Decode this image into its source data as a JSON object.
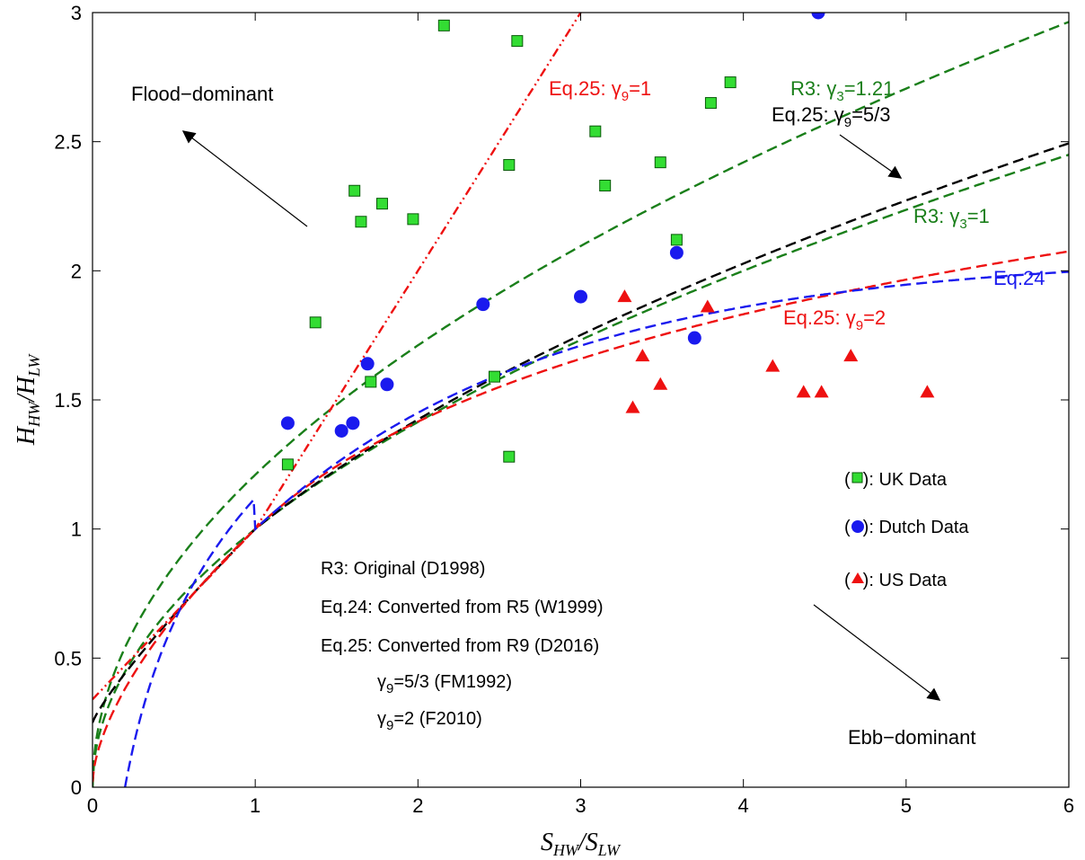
{
  "chart_data": {
    "type": "scatter",
    "xlabel": {
      "main": "S",
      "sub1": "HW",
      "sep": "/S",
      "sub2": "LW"
    },
    "ylabel": {
      "main": "H",
      "sub1": "HW",
      "sep": "/H",
      "sub2": "LW"
    },
    "xlim": [
      0,
      6
    ],
    "ylim": [
      0,
      3
    ],
    "xticks": [
      0,
      1,
      2,
      3,
      4,
      5,
      6
    ],
    "yticks": [
      0,
      0.5,
      1,
      1.5,
      2,
      2.5,
      3
    ],
    "ytick_labels": [
      "0",
      "0.5",
      "1",
      "1.5",
      "2",
      "2.5",
      "3"
    ],
    "grid": false,
    "series": [
      {
        "name": "UK Data",
        "marker": "square",
        "color": "#33dd33",
        "points": [
          [
            1.2,
            1.25
          ],
          [
            1.37,
            1.8
          ],
          [
            1.61,
            2.31
          ],
          [
            1.65,
            2.19
          ],
          [
            1.71,
            1.57
          ],
          [
            1.78,
            2.26
          ],
          [
            1.97,
            2.2
          ],
          [
            2.16,
            2.95
          ],
          [
            2.47,
            1.59
          ],
          [
            2.56,
            2.41
          ],
          [
            2.56,
            1.28
          ],
          [
            2.61,
            2.89
          ],
          [
            3.09,
            2.54
          ],
          [
            3.15,
            2.33
          ],
          [
            3.49,
            2.42
          ],
          [
            3.59,
            2.12
          ],
          [
            3.8,
            2.65
          ],
          [
            3.92,
            2.73
          ]
        ]
      },
      {
        "name": "Dutch Data",
        "marker": "circle",
        "color": "#1a1aee",
        "points": [
          [
            1.2,
            1.41
          ],
          [
            1.53,
            1.38
          ],
          [
            1.6,
            1.41
          ],
          [
            1.69,
            1.64
          ],
          [
            1.81,
            1.56
          ],
          [
            2.4,
            1.87
          ],
          [
            3.0,
            1.9
          ],
          [
            3.59,
            2.07
          ],
          [
            3.7,
            1.74
          ],
          [
            4.46,
            3.0
          ]
        ]
      },
      {
        "name": "US Data",
        "marker": "triangle",
        "color": "#ee1111",
        "points": [
          [
            3.27,
            1.9
          ],
          [
            3.32,
            1.47
          ],
          [
            3.38,
            1.67
          ],
          [
            3.49,
            1.56
          ],
          [
            3.78,
            1.86
          ],
          [
            4.18,
            1.63
          ],
          [
            4.37,
            1.53
          ],
          [
            4.48,
            1.53
          ],
          [
            4.66,
            1.67
          ],
          [
            5.13,
            1.53
          ]
        ]
      }
    ],
    "curves": [
      {
        "id": "r3-g121",
        "color": "#1a7f1a",
        "dash": "dashed"
      },
      {
        "id": "r3-g1",
        "color": "#1a7f1a",
        "dash": "dashed"
      },
      {
        "id": "eq25-g53",
        "color": "#000000",
        "dash": "dashed"
      },
      {
        "id": "eq25-g2",
        "color": "#ee1111",
        "dash": "dashed"
      },
      {
        "id": "eq25-g1",
        "color": "#ee1111",
        "dash": "dashdotdot"
      },
      {
        "id": "eq24",
        "color": "#1a1aee",
        "dash": "dashed"
      }
    ],
    "curve_labels": {
      "eq25_g1": {
        "prefix": "Eq.25: ",
        "symbol": "γ",
        "sub": "9",
        "suffix": "=1",
        "color": "#ee1111"
      },
      "r3_g121": {
        "prefix": "R3: ",
        "symbol": "γ",
        "sub": "3",
        "suffix": "=1.21",
        "color": "#1a7f1a"
      },
      "eq25_g53": {
        "prefix": "Eq.25: ",
        "symbol": "γ",
        "sub": "9",
        "suffix": "=5/3",
        "color": "#000000"
      },
      "r3_g1": {
        "prefix": "R3: ",
        "symbol": "γ",
        "sub": "3",
        "suffix": "=1",
        "color": "#1a7f1a"
      },
      "eq24": {
        "text": "Eq.24",
        "color": "#1a1aee"
      },
      "eq25_g2": {
        "prefix": "Eq.25: ",
        "symbol": "γ",
        "sub": "9",
        "suffix": "=2",
        "color": "#ee1111"
      }
    },
    "annotations": {
      "flood": "Flood−dominant",
      "ebb": "Ebb−dominant"
    },
    "legend": {
      "placement": "right",
      "entries": [
        {
          "open": "(",
          "close": "): UK Data",
          "marker": "square",
          "color": "#33dd33"
        },
        {
          "open": "(",
          "close": "): Dutch Data",
          "marker": "circle",
          "color": "#1a1aee"
        },
        {
          "open": "(",
          "close": "): US Data",
          "marker": "triangle",
          "color": "#ee1111"
        }
      ]
    },
    "notes": {
      "line1": "R3: Original (D1998)",
      "line2": "Eq.24: Converted from R5 (W1999)",
      "line3": "Eq.25: Converted from R9 (D2016)",
      "line4": {
        "symbol": "γ",
        "sub": "9",
        "suffix": "=5/3 (FM1992)"
      },
      "line5": {
        "symbol": "γ",
        "sub": "9",
        "suffix": "=2 (F2010)"
      }
    }
  }
}
